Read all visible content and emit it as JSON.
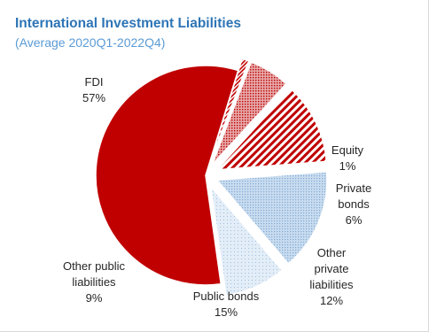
{
  "chart": {
    "title": "International Investment Liabilities",
    "subtitle": "(Average 2020Q1-2022Q4)"
  },
  "chart_data": {
    "type": "pie",
    "title": "International Investment Liabilities",
    "subtitle": "(Average 2020Q1-2022Q4)",
    "unit": "%",
    "slices": [
      {
        "name": "FDI",
        "value": 57,
        "label_lines": [
          "FDI",
          "57%"
        ],
        "color": "#c00000",
        "pattern": "solid",
        "exploded": false
      },
      {
        "name": "Equity",
        "value": 1,
        "label_lines": [
          "Equity",
          "1%"
        ],
        "color": "#c00000",
        "pattern": "dense-stripes",
        "exploded": true
      },
      {
        "name": "Private bonds",
        "value": 6,
        "label_lines": [
          "Private",
          "bonds",
          "6%"
        ],
        "color": "#c00000",
        "pattern": "dots",
        "exploded": true
      },
      {
        "name": "Other private liabilities",
        "value": 12,
        "label_lines": [
          "Other",
          "private",
          "liabilities",
          "12%"
        ],
        "color": "#c00000",
        "pattern": "diagonal-stripes",
        "exploded": true
      },
      {
        "name": "Public bonds",
        "value": 15,
        "label_lines": [
          "Public bonds",
          "15%"
        ],
        "color": "#9dc3e6",
        "pattern": "dots",
        "exploded": true
      },
      {
        "name": "Other public liabilities",
        "value": 9,
        "label_lines": [
          "Other public",
          "liabilities",
          "9%"
        ],
        "color": "#9dc3e6",
        "pattern": "fine-dots",
        "exploded": true
      }
    ]
  }
}
